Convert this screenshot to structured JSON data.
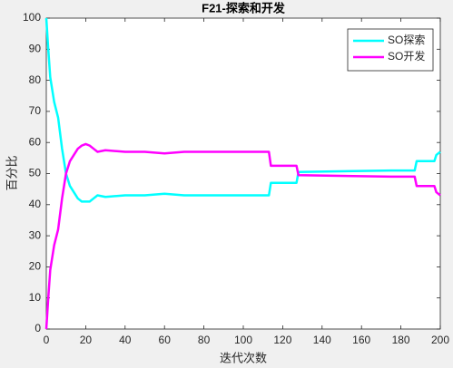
{
  "chart_data": {
    "type": "line",
    "title": "F21-探索和开发",
    "xlabel": "迭代次数",
    "ylabel": "百分比",
    "x": [
      0,
      1,
      2,
      4,
      6,
      8,
      10,
      12,
      14,
      16,
      18,
      20,
      22,
      24,
      26,
      30,
      40,
      50,
      60,
      70,
      113,
      114,
      127,
      128,
      175,
      187,
      188,
      197,
      198,
      200
    ],
    "series": [
      {
        "name": "SO探索",
        "color": "#00ffff",
        "values": [
          100,
          90,
          81,
          73,
          68,
          58,
          50,
          46,
          44,
          42,
          41,
          41,
          41,
          42,
          43,
          42.5,
          43,
          43,
          43.5,
          43,
          43,
          47,
          47,
          50.5,
          51,
          51,
          54,
          54,
          56,
          57
        ]
      },
      {
        "name": "SO开发",
        "color": "#ff00ff",
        "values": [
          0,
          10,
          19,
          27,
          32,
          42,
          50,
          54,
          56,
          58,
          59,
          59.5,
          59,
          58,
          57,
          57.5,
          57,
          57,
          56.5,
          57,
          57,
          52.5,
          52.5,
          49.5,
          49,
          49,
          46,
          46,
          44,
          43
        ]
      }
    ],
    "xlim": [
      0,
      200
    ],
    "xticks": [
      0,
      20,
      40,
      60,
      80,
      100,
      120,
      140,
      160,
      180,
      200
    ],
    "ylim": [
      0,
      100
    ],
    "yticks": [
      0,
      10,
      20,
      30,
      40,
      50,
      60,
      70,
      80,
      90,
      100
    ],
    "legend": "upper right"
  }
}
